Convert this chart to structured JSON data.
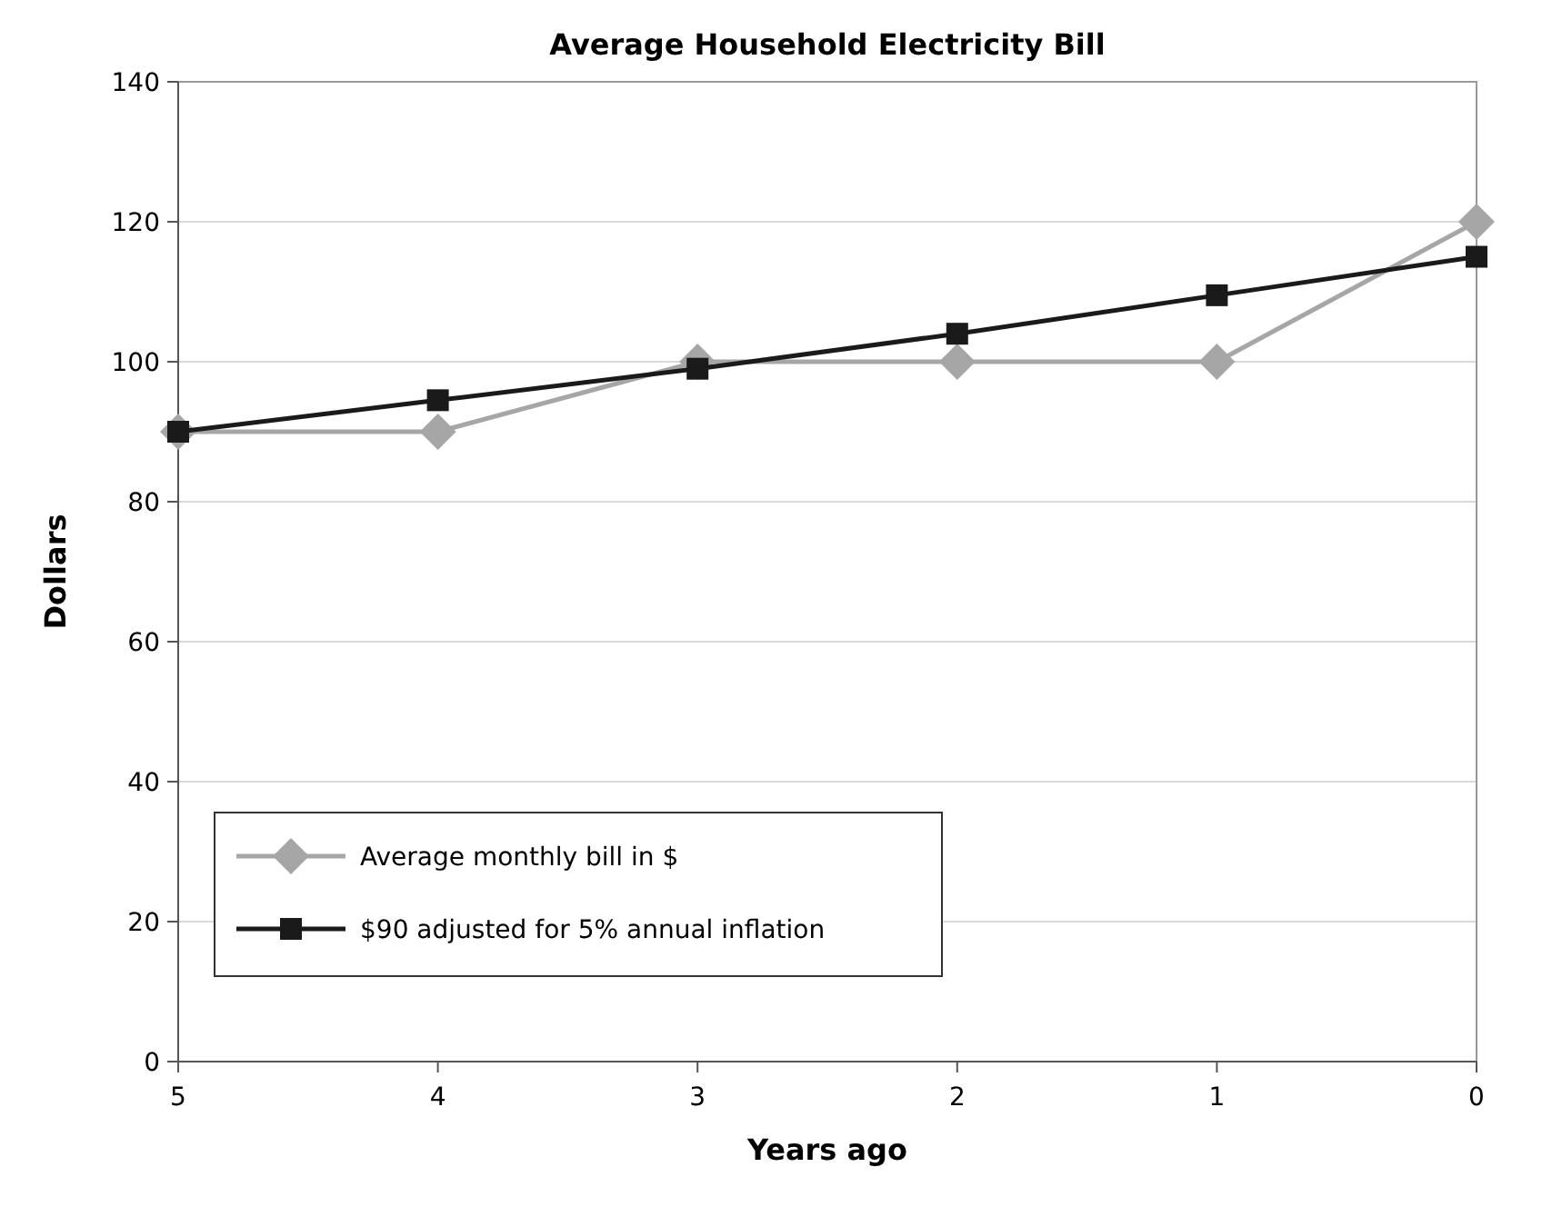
{
  "chart_data": {
    "type": "line",
    "title": "Average Household Electricity Bill",
    "xlabel": "Years ago",
    "ylabel": "Dollars",
    "x": [
      5,
      4,
      3,
      2,
      1,
      0
    ],
    "xlim": [
      5,
      0
    ],
    "xticks": [
      5,
      4,
      3,
      2,
      1,
      0
    ],
    "ylim": [
      0,
      140
    ],
    "yticks": [
      0,
      20,
      40,
      60,
      80,
      100,
      120,
      140
    ],
    "grid": "y",
    "legend": "bottom left",
    "series": [
      {
        "name": "Average monthly bill in $",
        "color": "#a6a6a6",
        "values": [
          90,
          90,
          100,
          100,
          100,
          120
        ],
        "marker": "diamond"
      },
      {
        "name": "$90 adjusted for 5% annual inflation",
        "color": "#1a1a1a",
        "values": [
          90,
          94.5,
          99,
          104,
          109.5,
          115
        ],
        "marker": "square"
      }
    ]
  }
}
